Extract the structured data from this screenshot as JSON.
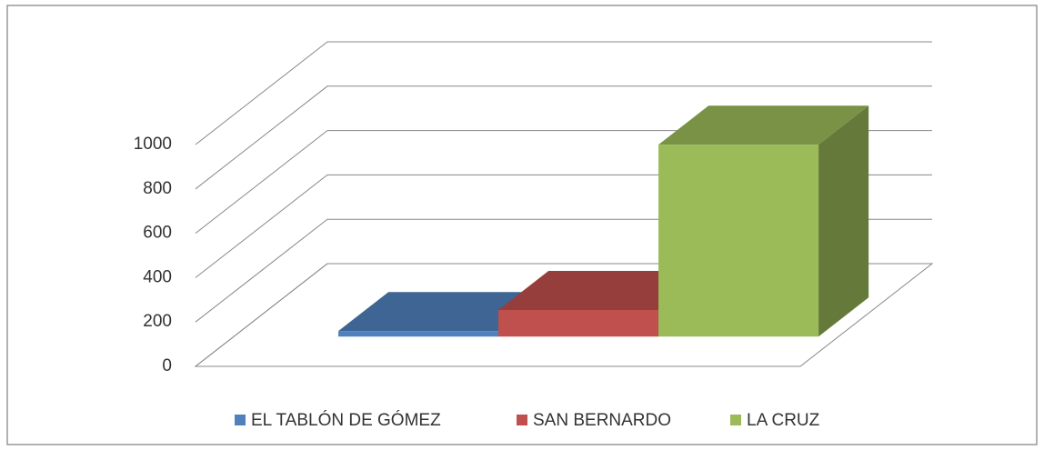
{
  "chart_data": {
    "type": "bar3d",
    "series": [
      {
        "name": "EL TABLÓN DE GÓMEZ",
        "color": "#4f81bd",
        "values": [
          25
        ]
      },
      {
        "name": "SAN BERNARDO",
        "color": "#c0504d",
        "values": [
          120
        ]
      },
      {
        "name": "LA CRUZ",
        "color": "#9bbb59",
        "values": [
          865
        ]
      }
    ],
    "ylim": [
      0,
      1000
    ],
    "yticks": [
      0,
      200,
      400,
      600,
      800,
      1000
    ],
    "grid": true,
    "legend": "bottom"
  }
}
